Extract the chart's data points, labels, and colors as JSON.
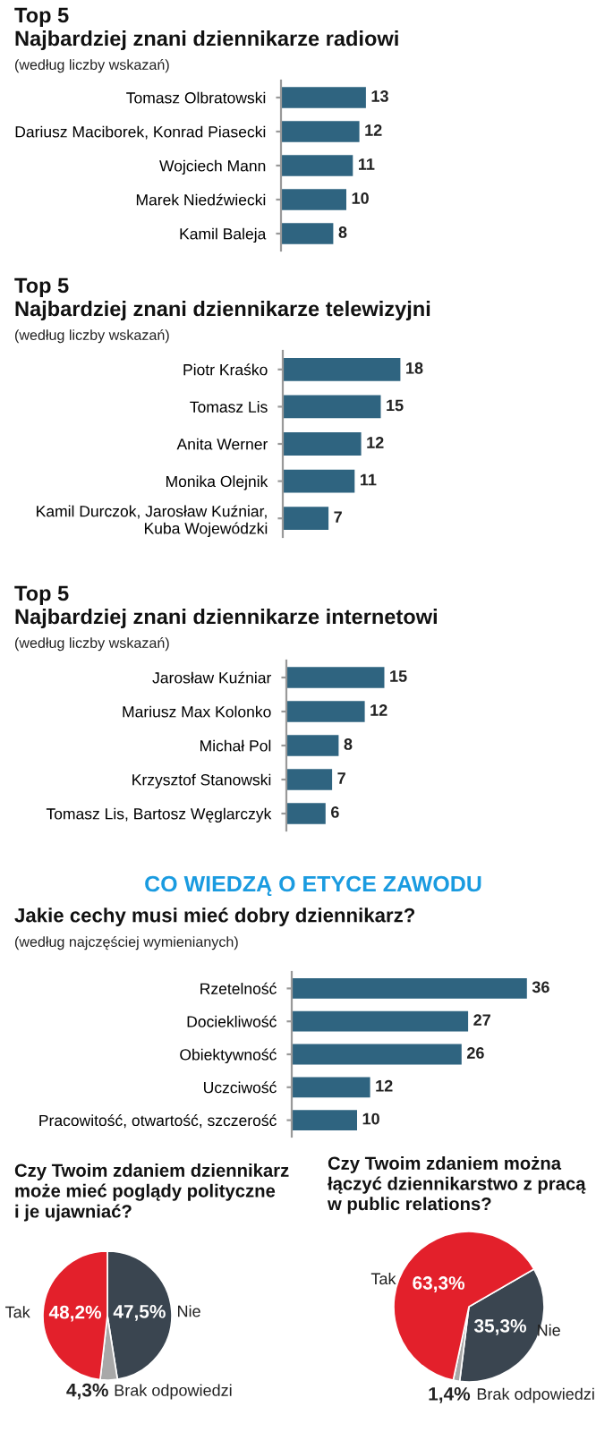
{
  "chart_data": [
    {
      "type": "bar",
      "orientation": "horizontal",
      "title": "Top 5",
      "subtitle": "Najbardziej znani dziennikarze radiowi",
      "annotations": [
        "(według liczby wskazań)"
      ],
      "categories": [
        "Tomasz Olbratowski",
        "Dariusz Maciborek, Konrad Piasecki",
        "Wojciech Mann",
        "Marek Niedźwiecki",
        "Kamil Baleja"
      ],
      "values": [
        13,
        12,
        11,
        10,
        8
      ],
      "color": "#2f6480",
      "data_labels": true,
      "tick_labels": "y"
    },
    {
      "type": "bar",
      "orientation": "horizontal",
      "title": "Top 5",
      "subtitle": "Najbardziej znani dziennikarze telewizyjni",
      "annotations": [
        "(według liczby wskazań)"
      ],
      "categories": [
        "Piotr Kraśko",
        "Tomasz Lis",
        "Anita Werner",
        "Monika Olejnik",
        "Kamil Durczok, Jarosław Kuźniar,\nKuba Wojewódzki"
      ],
      "values": [
        18,
        15,
        12,
        11,
        7
      ],
      "color": "#2f6480",
      "data_labels": true,
      "tick_labels": "y"
    },
    {
      "type": "bar",
      "orientation": "horizontal",
      "title": "Top 5",
      "subtitle": "Najbardziej znani dziennikarze internetowi",
      "annotations": [
        "(według liczby wskazań)"
      ],
      "categories": [
        "Jarosław Kuźniar",
        "Mariusz Max Kolonko",
        "Michał Pol",
        "Krzysztof Stanowski",
        "Tomasz Lis, Bartosz Węglarczyk"
      ],
      "values": [
        15,
        12,
        8,
        7,
        6
      ],
      "color": "#2f6480",
      "data_labels": true,
      "tick_labels": "y"
    },
    {
      "type": "bar",
      "orientation": "horizontal",
      "title": "CO WIEDZĄ O ETYCE ZAWODU",
      "subtitle": "Jakie cechy musi mieć dobry dziennikarz?",
      "annotations": [
        "(według najczęściej wymienianych)"
      ],
      "categories": [
        "Rzetelność",
        "Dociekliwość",
        "Obiektywność",
        "Uczciwość",
        "Pracowitość, otwartość, szczerość"
      ],
      "values": [
        36,
        27,
        26,
        12,
        10
      ],
      "color": "#2f6480",
      "data_labels": true,
      "tick_labels": "y"
    },
    {
      "type": "pie",
      "title": "Czy Twoim zdaniem dziennikarz\nmoże mieć poglądy polityczne\ni je ujawniać?",
      "categories": [
        "Nie",
        "Brak odpowiedzi",
        "Tak"
      ],
      "values": [
        47.5,
        4.3,
        48.2
      ],
      "value_labels": [
        "47,5%",
        "4,3%",
        "48,2%"
      ],
      "colors": [
        "#3a4550",
        "#a8a8a8",
        "#e3202b"
      ]
    },
    {
      "type": "pie",
      "title": "Czy Twoim zdaniem można\nłączyć dziennikarstwo z pracą\nw public relations?",
      "categories": [
        "Nie",
        "Brak odpowiedzi",
        "Tak"
      ],
      "values": [
        35.3,
        1.4,
        63.3
      ],
      "value_labels": [
        "35,3%",
        "1,4%",
        "63,3%"
      ],
      "colors": [
        "#3a4550",
        "#a8a8a8",
        "#e3202b"
      ]
    }
  ]
}
